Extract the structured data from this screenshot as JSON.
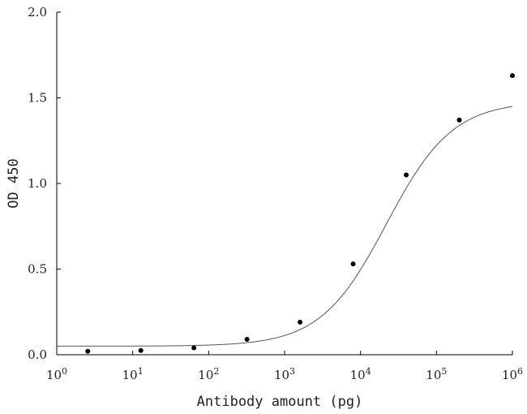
{
  "chart_data": {
    "type": "scatter",
    "xscale": "log",
    "xlim": [
      1,
      1000000
    ],
    "ylim": [
      0,
      2.0
    ],
    "xlabel": "Antibody amount (pg)",
    "ylabel": "OD 450",
    "grid": false,
    "x_ticks": [
      {
        "value": 1,
        "base": "10",
        "exp": "0"
      },
      {
        "value": 10,
        "base": "10",
        "exp": "1"
      },
      {
        "value": 100,
        "base": "10",
        "exp": "2"
      },
      {
        "value": 1000,
        "base": "10",
        "exp": "3"
      },
      {
        "value": 10000,
        "base": "10",
        "exp": "4"
      },
      {
        "value": 100000,
        "base": "10",
        "exp": "5"
      },
      {
        "value": 1000000,
        "base": "10",
        "exp": "6"
      }
    ],
    "y_ticks": [
      {
        "value": 0,
        "label": "0.0"
      },
      {
        "value": 0.5,
        "label": "0.5"
      },
      {
        "value": 1.0,
        "label": "1.0"
      },
      {
        "value": 1.5,
        "label": "1.5"
      },
      {
        "value": 2.0,
        "label": "2.0"
      }
    ],
    "series": [
      {
        "points": [
          {
            "x": 2.56,
            "y": 0.02
          },
          {
            "x": 12.8,
            "y": 0.025
          },
          {
            "x": 64,
            "y": 0.04
          },
          {
            "x": 320,
            "y": 0.09
          },
          {
            "x": 1600,
            "y": 0.19
          },
          {
            "x": 8000,
            "y": 0.53
          },
          {
            "x": 40000,
            "y": 1.05
          },
          {
            "x": 200000,
            "y": 1.37
          },
          {
            "x": 1000000,
            "y": 1.63
          }
        ]
      }
    ],
    "fit_curve": {
      "model": "4PL",
      "bottom": 0.05,
      "top": 1.48,
      "ec50": 22000,
      "hill": 1.0,
      "x_range": [
        1,
        1000000
      ]
    }
  }
}
